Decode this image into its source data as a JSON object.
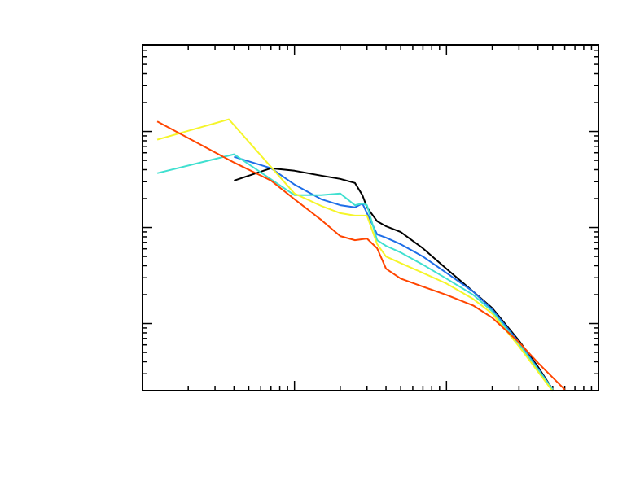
{
  "chart_data": {
    "type": "line",
    "xscale": "log",
    "yscale": "log",
    "xlim": [
      1,
      1000
    ],
    "ylim": [
      0.002,
      8
    ],
    "xticks": [
      1,
      2,
      3,
      4,
      5,
      6,
      7,
      8,
      9,
      10,
      20,
      30,
      40,
      50,
      60,
      70,
      80,
      90,
      100,
      200,
      300,
      400,
      500,
      600,
      700,
      800,
      900,
      1000
    ],
    "yticks": [
      0.002,
      0.003,
      0.004,
      0.005,
      0.006,
      0.007,
      0.008,
      0.009,
      0.01,
      0.02,
      0.03,
      0.04,
      0.05,
      0.06,
      0.07,
      0.08,
      0.09,
      0.1,
      0.2,
      0.3,
      0.4,
      0.5,
      0.6,
      0.7,
      0.8,
      0.9,
      1,
      2,
      3,
      4,
      5,
      6,
      7,
      8
    ],
    "series": [
      {
        "color": "#000000",
        "x": [
          4,
          7,
          10,
          15,
          20,
          25,
          28,
          30,
          35,
          40,
          50,
          70,
          100,
          150,
          200,
          300,
          400,
          500
        ],
        "values": [
          0.308,
          0.414,
          0.39,
          0.347,
          0.321,
          0.291,
          0.217,
          0.162,
          0.116,
          0.103,
          0.0898,
          0.0607,
          0.0372,
          0.0215,
          0.0145,
          0.00663,
          0.00354,
          0.00205
        ]
      },
      {
        "color": "#1e6ee8",
        "x": [
          4,
          7,
          10,
          15,
          20,
          25,
          28,
          30,
          35,
          40,
          50,
          70,
          100,
          150,
          200,
          300,
          400,
          500
        ],
        "values": [
          0.545,
          0.414,
          0.28,
          0.197,
          0.171,
          0.162,
          0.178,
          0.141,
          0.0847,
          0.0783,
          0.0669,
          0.0499,
          0.0337,
          0.0215,
          0.014,
          0.00637,
          0.0034,
          0.00205
        ]
      },
      {
        "color": "#40e0d0",
        "x": [
          1.25,
          4,
          10,
          15,
          20,
          25,
          28,
          30,
          35,
          40,
          50,
          70,
          100,
          150,
          200,
          300,
          500
        ],
        "values": [
          0.368,
          0.578,
          0.217,
          0.217,
          0.226,
          0.171,
          0.178,
          0.171,
          0.0738,
          0.0644,
          0.055,
          0.041,
          0.0294,
          0.0199,
          0.0134,
          0.00613,
          0.00205
        ]
      },
      {
        "color": "#f5f52a",
        "x": [
          1.25,
          3.7,
          10,
          15,
          20,
          25,
          30,
          35,
          40,
          50,
          70,
          100,
          150,
          200,
          300,
          500
        ],
        "values": [
          0.822,
          1.34,
          0.226,
          0.168,
          0.141,
          0.133,
          0.133,
          0.0669,
          0.0499,
          0.0426,
          0.0337,
          0.0261,
          0.018,
          0.0127,
          0.00578,
          0.00197
        ]
      },
      {
        "color": "#ff4500",
        "x": [
          1.25,
          4,
          7,
          10,
          15,
          20,
          25,
          30,
          35,
          40,
          50,
          70,
          100,
          150,
          200,
          300,
          400,
          600
        ],
        "values": [
          1.27,
          0.475,
          0.308,
          0.197,
          0.12,
          0.0814,
          0.0738,
          0.0767,
          0.0607,
          0.0372,
          0.0294,
          0.0242,
          0.0199,
          0.0154,
          0.0115,
          0.00637,
          0.0039,
          0.00205
        ]
      }
    ]
  }
}
